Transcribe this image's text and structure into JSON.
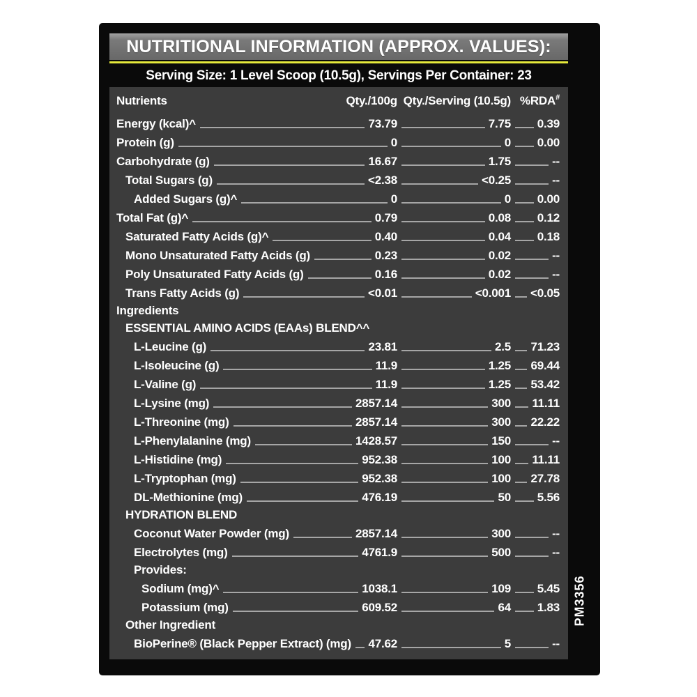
{
  "label": {
    "title": "NUTRITIONAL INFORMATION (APPROX. VALUES):",
    "serving_line": "Serving Size: 1 Level Scoop (10.5g), Servings Per Container: 23",
    "side_code": "PM3356",
    "colors": {
      "panel_bg": "#0a0a0a",
      "table_bg": "#3c3c3c",
      "title_bar_bg": "#7a7a7a",
      "accent_yellow": "#e5e93b",
      "text": "#ffffff",
      "leader": "#a6a6a6"
    },
    "table": {
      "columns": {
        "nutrients": "Nutrients",
        "qty_100g": "Qty./100g",
        "qty_serving": "Qty./Serving (10.5g)",
        "rda": "%RDA",
        "rda_sup": "#"
      },
      "rows": [
        {
          "label": "Energy (kcal)^",
          "indent": 0,
          "qty_100g": "73.79",
          "qty_serving": "7.75",
          "rda": "0.39"
        },
        {
          "label": "Protein (g)",
          "indent": 0,
          "qty_100g": "0",
          "qty_serving": "0",
          "rda": "0.00"
        },
        {
          "label": "Carbohydrate (g)",
          "indent": 0,
          "qty_100g": "16.67",
          "qty_serving": "1.75",
          "rda": "--"
        },
        {
          "label": "Total Sugars (g)",
          "indent": 1,
          "qty_100g": "<2.38",
          "qty_serving": "<0.25",
          "rda": "--"
        },
        {
          "label": "Added Sugars (g)^",
          "indent": 2,
          "qty_100g": "0",
          "qty_serving": "0",
          "rda": "0.00"
        },
        {
          "label": "Total Fat (g)^",
          "indent": 0,
          "qty_100g": "0.79",
          "qty_serving": "0.08",
          "rda": "0.12"
        },
        {
          "label": "Saturated Fatty Acids (g)^",
          "indent": 1,
          "qty_100g": "0.40",
          "qty_serving": "0.04",
          "rda": "0.18"
        },
        {
          "label": "Mono Unsaturated Fatty Acids (g)",
          "indent": 1,
          "qty_100g": "0.23",
          "qty_serving": "0.02",
          "rda": "--"
        },
        {
          "label": "Poly Unsaturated Fatty Acids (g)",
          "indent": 1,
          "qty_100g": "0.16",
          "qty_serving": "0.02",
          "rda": "--"
        },
        {
          "label": "Trans Fatty Acids (g)",
          "indent": 1,
          "qty_100g": "<0.01",
          "qty_serving": "<0.001",
          "rda": "<0.05"
        },
        {
          "label": "Ingredients",
          "indent": 0,
          "type": "section"
        },
        {
          "label": "ESSENTIAL AMINO ACIDS (EAAs) BLEND^^",
          "indent": 1,
          "type": "section"
        },
        {
          "label": "L-Leucine (g)",
          "indent": 2,
          "qty_100g": "23.81",
          "qty_serving": "2.5",
          "rda": "71.23"
        },
        {
          "label": "L-Isoleucine (g)",
          "indent": 2,
          "qty_100g": "11.9",
          "qty_serving": "1.25",
          "rda": "69.44"
        },
        {
          "label": "L-Valine (g)",
          "indent": 2,
          "qty_100g": "11.9",
          "qty_serving": "1.25",
          "rda": "53.42"
        },
        {
          "label": "L-Lysine (mg)",
          "indent": 2,
          "qty_100g": "2857.14",
          "qty_serving": "300",
          "rda": "11.11"
        },
        {
          "label": "L-Threonine (mg)",
          "indent": 2,
          "qty_100g": "2857.14",
          "qty_serving": "300",
          "rda": "22.22"
        },
        {
          "label": "L-Phenylalanine (mg)",
          "indent": 2,
          "qty_100g": "1428.57",
          "qty_serving": "150",
          "rda": "--"
        },
        {
          "label": "L-Histidine (mg)",
          "indent": 2,
          "qty_100g": "952.38",
          "qty_serving": "100",
          "rda": "11.11"
        },
        {
          "label": "L-Tryptophan (mg)",
          "indent": 2,
          "qty_100g": "952.38",
          "qty_serving": "100",
          "rda": "27.78"
        },
        {
          "label": "DL-Methionine (mg)",
          "indent": 2,
          "qty_100g": "476.19",
          "qty_serving": "50",
          "rda": "5.56"
        },
        {
          "label": "HYDRATION BLEND",
          "indent": 1,
          "type": "section"
        },
        {
          "label": "Coconut Water Powder (mg)",
          "indent": 2,
          "qty_100g": "2857.14",
          "qty_serving": "300",
          "rda": "--"
        },
        {
          "label": "Electrolytes (mg)",
          "indent": 2,
          "qty_100g": "4761.9",
          "qty_serving": "500",
          "rda": "--"
        },
        {
          "label": "Provides:",
          "indent": 2,
          "type": "section"
        },
        {
          "label": "Sodium (mg)^",
          "indent": 3,
          "qty_100g": "1038.1",
          "qty_serving": "109",
          "rda": "5.45"
        },
        {
          "label": "Potassium (mg)",
          "indent": 3,
          "qty_100g": "609.52",
          "qty_serving": "64",
          "rda": "1.83"
        },
        {
          "label": "Other Ingredient",
          "indent": 1,
          "type": "section"
        },
        {
          "label": "BioPerine® (Black Pepper Extract) (mg)",
          "indent": 2,
          "qty_100g": "47.62",
          "qty_serving": "5",
          "rda": "--"
        }
      ]
    }
  }
}
